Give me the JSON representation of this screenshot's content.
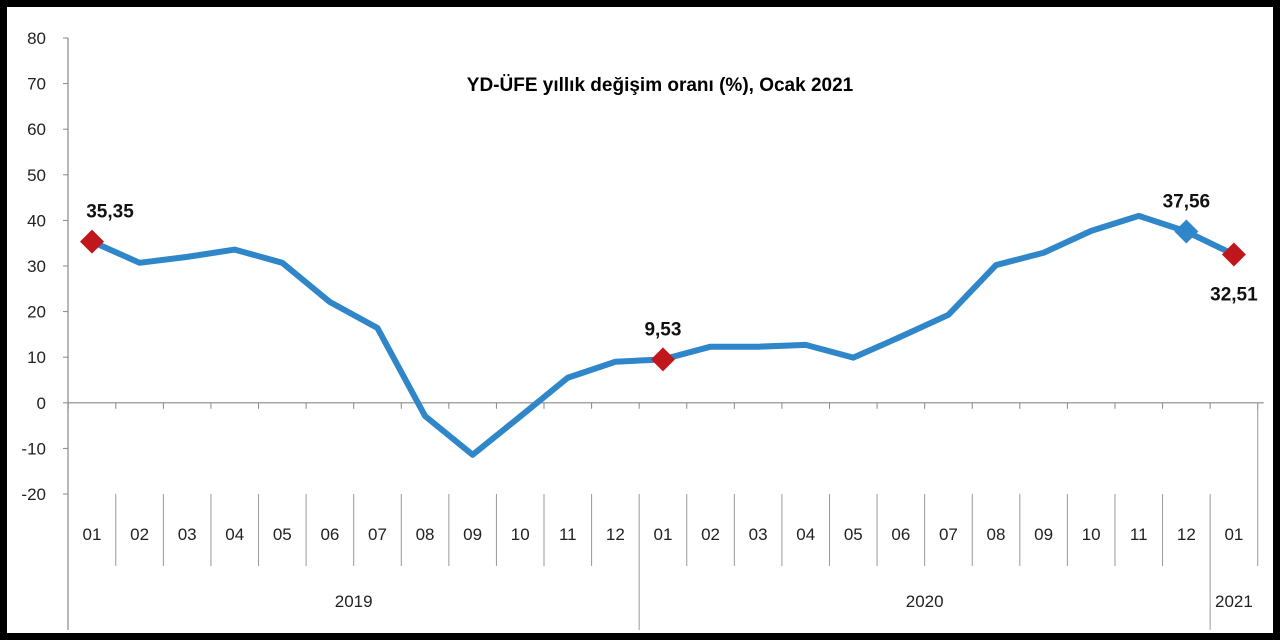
{
  "chart_data": {
    "type": "line",
    "title": "YD-ÜFE yıllık değişim oranı (%), Ocak 2021",
    "xlabel": "",
    "ylabel": "",
    "ylim": [
      -20,
      80
    ],
    "yticks": [
      "-20",
      "-10",
      "0",
      "10",
      "20",
      "30",
      "40",
      "50",
      "60",
      "70",
      "80"
    ],
    "grid": false,
    "legend": "none",
    "categories": [
      "01",
      "02",
      "03",
      "04",
      "05",
      "06",
      "07",
      "08",
      "09",
      "10",
      "11",
      "12",
      "01",
      "02",
      "03",
      "04",
      "05",
      "06",
      "07",
      "08",
      "09",
      "10",
      "11",
      "12",
      "01"
    ],
    "years": [
      {
        "label": "2019",
        "months": 12
      },
      {
        "label": "2020",
        "months": 12
      },
      {
        "label": "2021",
        "months": 1
      }
    ],
    "series": [
      {
        "values": [
          35.35,
          30.7,
          32.0,
          33.6,
          30.7,
          22.1,
          16.4,
          -2.9,
          -11.4,
          -3.0,
          5.5,
          9.0,
          9.53,
          12.3,
          12.3,
          12.7,
          9.9,
          14.5,
          19.3,
          30.2,
          32.9,
          37.7,
          41.0,
          37.56,
          32.51
        ],
        "color": "#2f86c8"
      }
    ],
    "annotations": [
      {
        "index": 0,
        "label": "35,35",
        "marker_color": "#c0171c",
        "position": "above"
      },
      {
        "index": 12,
        "label": "9,53",
        "marker_color": "#c0171c",
        "position": "above"
      },
      {
        "index": 23,
        "label": "37,56",
        "marker_color": "#2f86c8",
        "position": "above"
      },
      {
        "index": 24,
        "label": "32,51",
        "marker_color": "#c0171c",
        "position": "below"
      }
    ]
  }
}
